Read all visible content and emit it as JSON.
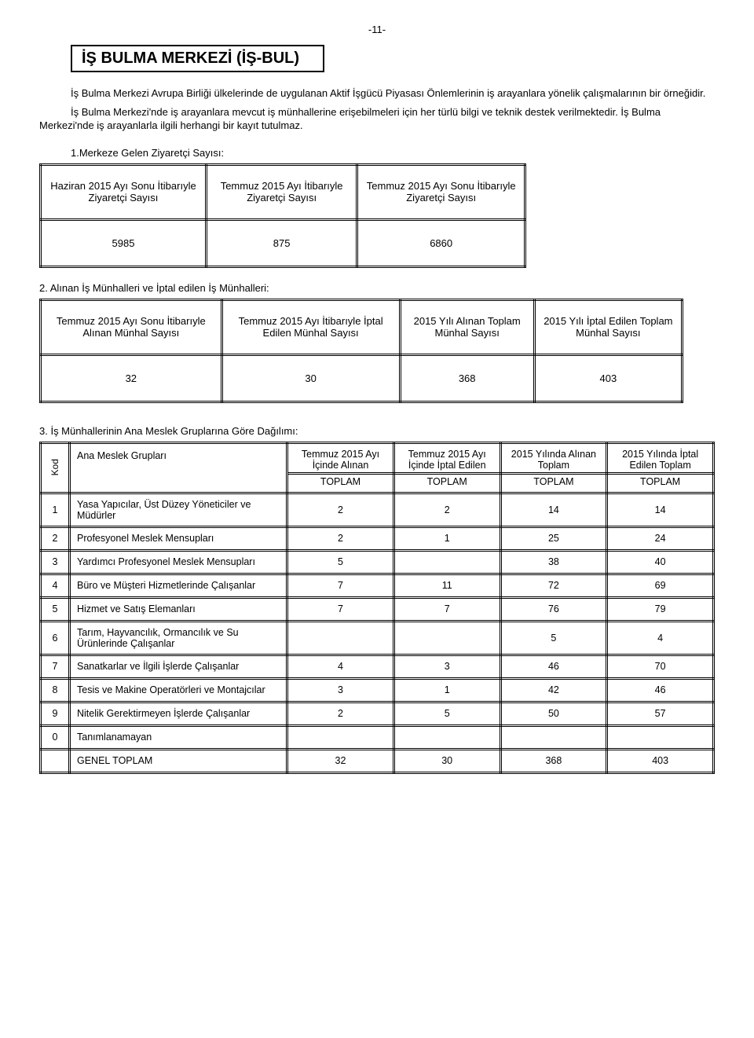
{
  "page_number": "-11-",
  "title": "İŞ BULMA MERKEZİ (İŞ-BUL)",
  "intro_p1": "İş Bulma Merkezi Avrupa Birliği ülkelerinde de uygulanan Aktif İşgücü Piyasası Önlemlerinin iş arayanlara yönelik çalışmalarının bir örneğidir.",
  "intro_p2": "İş Bulma Merkezi'nde iş arayanlara mevcut iş münhallerine erişebilmeleri için her türlü bilgi ve teknik destek verilmektedir. İş Bulma Merkezi'nde iş arayanlarla ilgili herhangi bir kayıt tutulmaz.",
  "section1": {
    "label": "1.Merkeze Gelen Ziyaretçi Sayısı:",
    "headers": [
      "Haziran 2015 Ayı Sonu İtibarıyle Ziyaretçi Sayısı",
      "Temmuz 2015 Ayı İtibarıyle Ziyaretçi Sayısı",
      "Temmuz 2015 Ayı Sonu İtibarıyle Ziyaretçi Sayısı"
    ],
    "values": [
      "5985",
      "875",
      "6860"
    ]
  },
  "section2": {
    "label": "2. Alınan İş Münhalleri ve İptal edilen İş Münhalleri:",
    "headers": [
      "Temmuz 2015 Ayı Sonu İtibarıyle Alınan Münhal Sayısı",
      "Temmuz 2015 Ayı İtibarıyle İptal Edilen Münhal Sayısı",
      "2015 Yılı Alınan Toplam Münhal Sayısı",
      "2015 Yılı İptal Edilen Toplam Münhal Sayısı"
    ],
    "values": [
      "32",
      "30",
      "368",
      "403"
    ]
  },
  "section3": {
    "label": "3. İş Münhallerinin Ana Meslek Gruplarına Göre Dağılımı:",
    "kod_label": "Kod",
    "group_label": "Ana Meslek Grupları",
    "col_top": [
      "Temmuz 2015 Ayı İçinde Alınan",
      "Temmuz 2015 Ayı İçinde İptal Edilen",
      "2015 Yılında Alınan  Toplam",
      "2015 Yılında İptal Edilen Toplam"
    ],
    "col_bot": "TOPLAM",
    "rows": [
      {
        "k": "1",
        "n": "Yasa Yapıcılar, Üst Düzey Yöneticiler ve Müdürler",
        "v": [
          "2",
          "2",
          "14",
          "14"
        ]
      },
      {
        "k": "2",
        "n": "Profesyonel Meslek Mensupları",
        "v": [
          "2",
          "1",
          "25",
          "24"
        ]
      },
      {
        "k": "3",
        "n": "Yardımcı Profesyonel Meslek Mensupları",
        "v": [
          "5",
          "",
          "38",
          "40"
        ]
      },
      {
        "k": "4",
        "n": "Büro ve Müşteri Hizmetlerinde Çalışanlar",
        "v": [
          "7",
          "11",
          "72",
          "69"
        ]
      },
      {
        "k": "5",
        "n": "Hizmet ve Satış Elemanları",
        "v": [
          "7",
          "7",
          "76",
          "79"
        ]
      },
      {
        "k": "6",
        "n": "  Tarım, Hayvancılık, Ormancılık ve Su Ürünlerinde Çalışanlar",
        "v": [
          "",
          "",
          "5",
          "4"
        ]
      },
      {
        "k": "7",
        "n": "Sanatkarlar ve İlgili İşlerde Çalışanlar",
        "v": [
          "4",
          "3",
          "46",
          "70"
        ]
      },
      {
        "k": "8",
        "n": "  Tesis ve Makine Operatörleri ve Montajcılar",
        "v": [
          "3",
          "1",
          "42",
          "46"
        ]
      },
      {
        "k": "9",
        "n": "  Nitelik Gerektirmeyen İşlerde Çalışanlar",
        "v": [
          "2",
          "5",
          "50",
          "57"
        ]
      },
      {
        "k": "0",
        "n": "  Tanımlanamayan",
        "v": [
          "",
          "",
          "",
          ""
        ]
      }
    ],
    "total_label": "GENEL TOPLAM",
    "total_values": [
      "32",
      "30",
      "368",
      "403"
    ]
  }
}
